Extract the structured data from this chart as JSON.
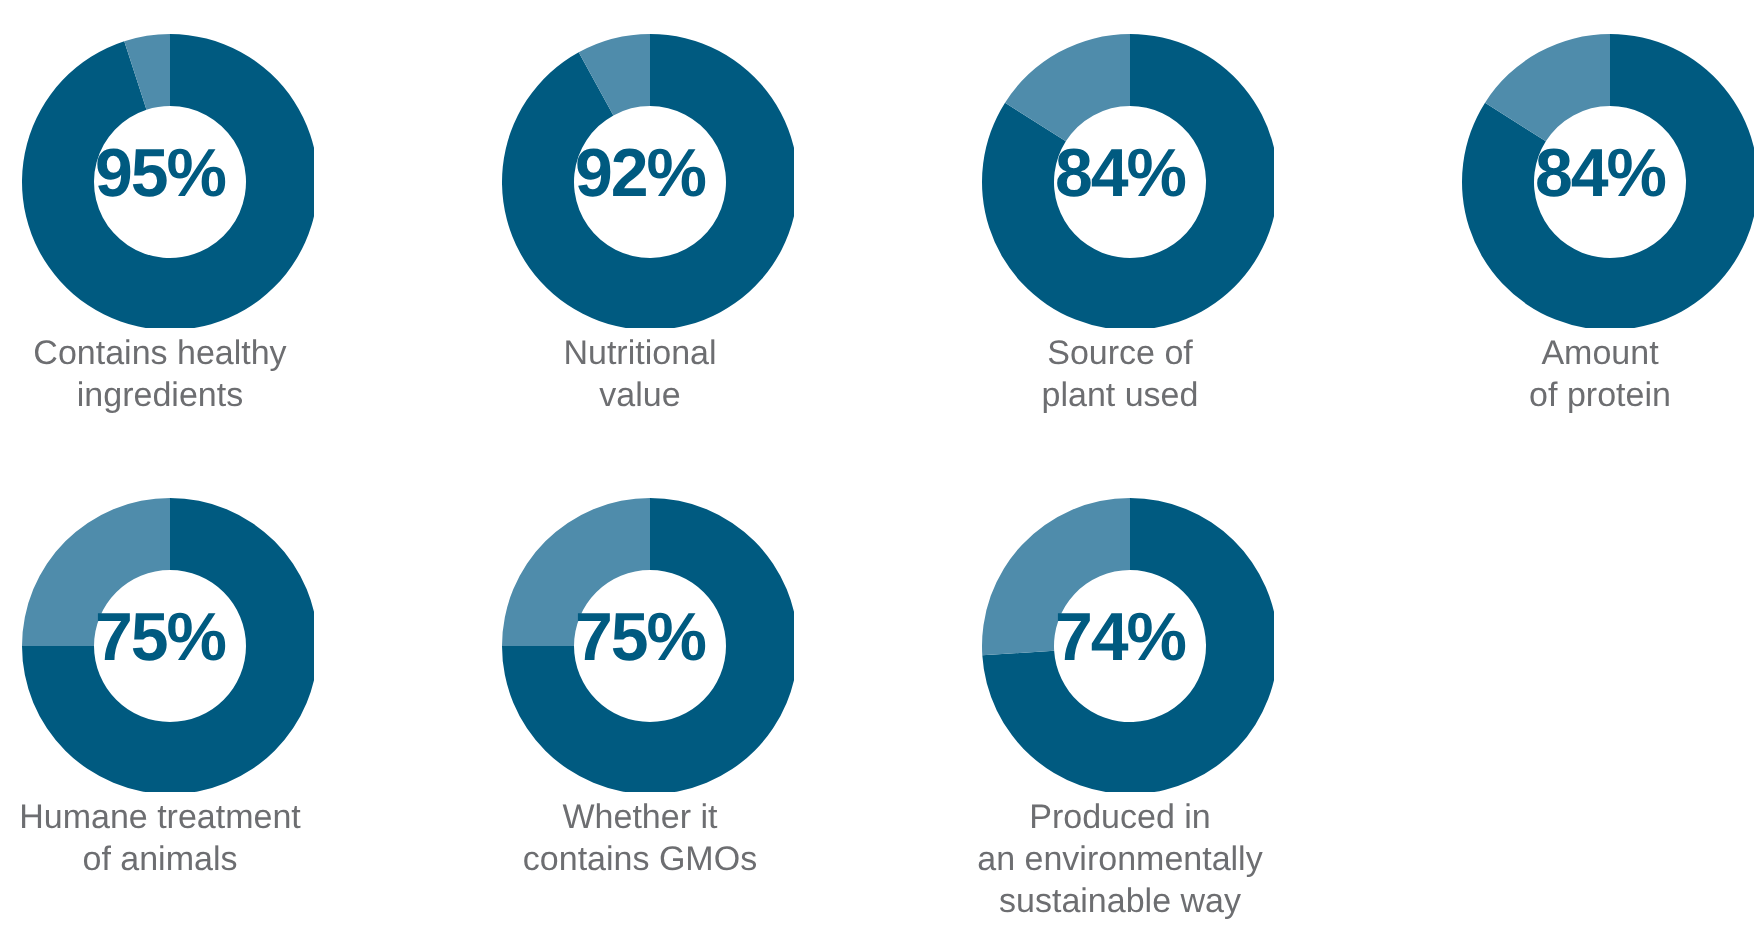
{
  "chart_data": [
    {
      "type": "donut",
      "title": "Contains healthy\ningredients",
      "categories": [
        null,
        null
      ],
      "values": [
        95,
        5
      ],
      "colors": [
        "#005a80",
        "#4f8cab"
      ],
      "annotations": [
        "95%"
      ]
    },
    {
      "type": "donut",
      "title": "Nutritional\nvalue",
      "categories": [
        null,
        null
      ],
      "values": [
        92,
        8
      ],
      "colors": [
        "#005a80",
        "#4f8cab"
      ],
      "annotations": [
        "92%"
      ]
    },
    {
      "type": "donut",
      "title": "Source of\nplant used",
      "categories": [
        null,
        null
      ],
      "values": [
        84,
        16
      ],
      "colors": [
        "#005a80",
        "#4f8cab"
      ],
      "annotations": [
        "84%"
      ]
    },
    {
      "type": "donut",
      "title": "Amount\nof protein",
      "categories": [
        null,
        null
      ],
      "values": [
        84,
        16
      ],
      "colors": [
        "#005a80",
        "#4f8cab"
      ],
      "annotations": [
        "84%"
      ]
    },
    {
      "type": "donut",
      "title": "Humane treatment\nof animals",
      "categories": [
        null,
        null
      ],
      "values": [
        75,
        25
      ],
      "colors": [
        "#005a80",
        "#4f8cab"
      ],
      "annotations": [
        "75%"
      ]
    },
    {
      "type": "donut",
      "title": "Whether it\ncontains GMOs",
      "categories": [
        null,
        null
      ],
      "values": [
        75,
        25
      ],
      "colors": [
        "#005a80",
        "#4f8cab"
      ],
      "annotations": [
        "75%"
      ]
    },
    {
      "type": "donut",
      "title": "Produced in\nan environmentally\nsustainable way",
      "categories": [
        null,
        null
      ],
      "values": [
        74,
        26
      ],
      "colors": [
        "#005a80",
        "#4f8cab"
      ],
      "annotations": [
        "74%"
      ]
    }
  ]
}
